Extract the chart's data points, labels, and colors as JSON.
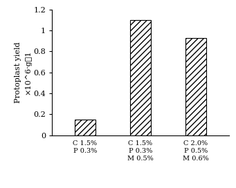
{
  "categories": [
    "C 1.5%\nP 0.3%",
    "C 1.5%\nP 0.3%\nM 0.5%",
    "C 2.0%\nP 0.5%\nM 0.6%"
  ],
  "values": [
    0.15,
    1.1,
    0.93
  ],
  "ylim": [
    0,
    1.2
  ],
  "yticks": [
    0,
    0.2,
    0.4,
    0.6,
    0.8,
    1.0,
    1.2
  ],
  "ytick_labels": [
    "0",
    "0.2",
    "0.4",
    "0.6",
    "0.8",
    "1",
    "1.2"
  ],
  "ylabel_line1": "Protoplast yield",
  "ylabel_line2": "×10^6·g－1",
  "bar_color": "white",
  "bar_edgecolor": "black",
  "hatch": "////",
  "bar_width": 0.38,
  "background_color": "#ffffff",
  "tick_fontsize": 8,
  "label_fontsize": 7,
  "ylabel_fontsize": 8
}
